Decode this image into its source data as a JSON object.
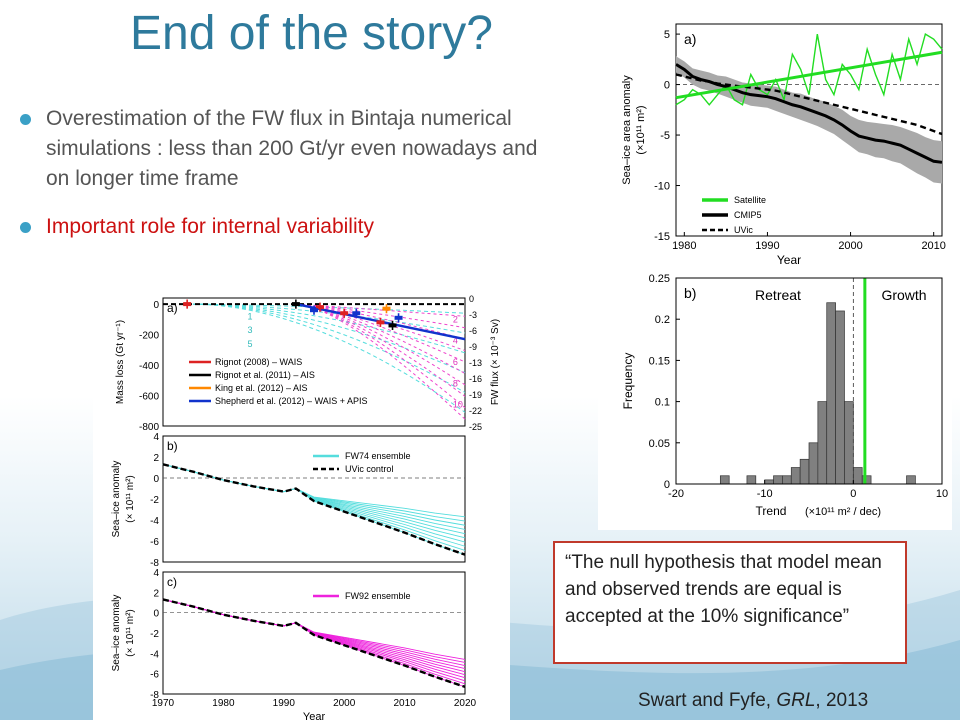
{
  "slide": {
    "title": "End of the story?",
    "bullets": [
      {
        "text": "Overestimation of the FW flux in Bintaja numerical simulations : less than 200 Gt/yr even nowadays and on longer time frame"
      },
      {
        "text": "Important role for internal variability"
      }
    ],
    "quote": "“The null hypothesis that model mean and observed trends are equal is accepted at the 10% significance”",
    "citation_prefix": "Swart and Fyfe, ",
    "citation_journal": "GRL",
    "citation_suffix": ", 2013",
    "colors": {
      "title": "#2e7a9c",
      "bullet": "#3aa0c6",
      "highlight": "#cc1111",
      "quote_border": "#c0392b"
    }
  },
  "chart_data": [
    {
      "id": "right-a",
      "type": "line",
      "panel_label": "a)",
      "xlabel": "Year",
      "ylabel": "Sea–ice area anomaly",
      "ylabel_unit": "(×10¹¹ m²)",
      "xlim": [
        1979,
        2011
      ],
      "ylim": [
        -15,
        6
      ],
      "xticks": [
        1980,
        1990,
        2000,
        2010
      ],
      "yticks": [
        5,
        0,
        -5,
        -10,
        -15
      ],
      "legend": [
        "Satellite",
        "CMIP5",
        "UVic"
      ],
      "x": [
        1979,
        1980,
        1981,
        1982,
        1983,
        1984,
        1985,
        1986,
        1987,
        1988,
        1989,
        1990,
        1991,
        1992,
        1993,
        1994,
        1995,
        1996,
        1997,
        1998,
        1999,
        2000,
        2001,
        2002,
        2003,
        2004,
        2005,
        2006,
        2007,
        2008,
        2009,
        2010,
        2011
      ],
      "series": [
        {
          "name": "Satellite",
          "color": "#22dd22",
          "values": [
            -2,
            -1.5,
            -0.5,
            -1,
            -2,
            -1,
            0,
            -1.5,
            -2,
            1,
            -0.5,
            -1,
            0.5,
            -1.5,
            3,
            1.5,
            -1,
            5,
            0.5,
            -1,
            2,
            1,
            -0.5,
            3.5,
            1,
            -1,
            3,
            0.5,
            4.5,
            2,
            5,
            4.5,
            3.5
          ]
        },
        {
          "name": "Satellite trend",
          "color": "#22dd22",
          "values_fit": [
            -1.3,
            3.2
          ]
        },
        {
          "name": "CMIP5",
          "color": "#000000",
          "values": [
            2,
            1.5,
            0.8,
            0.5,
            0.3,
            0,
            -0.2,
            -0.5,
            -0.8,
            -1,
            -1.1,
            -1.2,
            -1.4,
            -1.7,
            -2,
            -2.2,
            -2.5,
            -2.8,
            -3.1,
            -3.5,
            -4,
            -4.6,
            -5.1,
            -5.3,
            -5.5,
            -5.6,
            -5.8,
            -6,
            -6.4,
            -6.8,
            -7.2,
            -7.6,
            -7.7
          ]
        },
        {
          "name": "UVic",
          "color": "#000000",
          "dashed": true,
          "values": [
            1,
            0.8,
            0.6,
            0.4,
            0.3,
            0.1,
            0,
            -0.1,
            -0.2,
            -0.3,
            -0.4,
            -0.5,
            -0.6,
            -0.8,
            -1,
            -1.2,
            -1.4,
            -1.6,
            -1.8,
            -2,
            -2.2,
            -2.4,
            -2.6,
            -2.8,
            -3,
            -3.2,
            -3.4,
            -3.6,
            -3.8,
            -4,
            -4.3,
            -4.6,
            -4.9
          ]
        }
      ],
      "band_halfwidth": [
        0.8,
        0.8,
        0.8,
        0.9,
        0.9,
        0.9,
        1,
        1,
        1,
        1.1,
        1.1,
        1.1,
        1.2,
        1.2,
        1.2,
        1.3,
        1.3,
        1.3,
        1.4,
        1.4,
        1.5,
        1.5,
        1.6,
        1.6,
        1.7,
        1.7,
        1.8,
        1.8,
        1.9,
        2,
        2,
        2.1,
        2.1
      ]
    },
    {
      "id": "right-b",
      "type": "bar",
      "panel_label": "b)",
      "annotations": [
        "Retreat",
        "Growth"
      ],
      "xlabel": "Trend",
      "xlabel_unit": "(×10¹¹ m² / dec)",
      "ylabel": "Frequency",
      "xlim": [
        -20,
        10
      ],
      "ylim": [
        0,
        0.25
      ],
      "xticks": [
        -20,
        -10,
        0,
        10
      ],
      "yticks": [
        0,
        0.05,
        0.1,
        0.15,
        0.2,
        0.25
      ],
      "bins": [
        [
          -15,
          -14,
          0.01
        ],
        [
          -12,
          -11,
          0.01
        ],
        [
          -10,
          -9,
          0.005
        ],
        [
          -9,
          -8,
          0.01
        ],
        [
          -8,
          -7,
          0.01
        ],
        [
          -7,
          -6,
          0.02
        ],
        [
          -6,
          -5,
          0.03
        ],
        [
          -5,
          -4,
          0.05
        ],
        [
          -4,
          -3,
          0.1
        ],
        [
          -3,
          -2,
          0.22
        ],
        [
          -2,
          -1,
          0.21
        ],
        [
          -1,
          0,
          0.1
        ],
        [
          0,
          1,
          0.02
        ],
        [
          1,
          2,
          0.01
        ],
        [
          6,
          7,
          0.01
        ]
      ],
      "satellite_trend": 1.3,
      "zero_line": true
    },
    {
      "id": "left-a",
      "type": "line",
      "panel_label": "a)",
      "ylabel": "Mass loss (Gt yr⁻¹)",
      "ylabel_right": "FW flux (× 10⁻³ Sv)",
      "xlim": [
        1970,
        2020
      ],
      "ylim": [
        -800,
        40
      ],
      "yticks": [
        0,
        -200,
        -400,
        -600,
        -800
      ],
      "yticks_right": [
        0,
        -3,
        -6,
        -9,
        -13,
        -16,
        -19,
        -22,
        -25
      ],
      "fan_labels_cyan": [
        "1",
        "3",
        "5"
      ],
      "fan_labels_magenta": [
        "2",
        "4",
        "6",
        "8",
        "10"
      ],
      "legend": [
        "Rignot (2008) – WAIS",
        "Rignot et al. (2011) – AIS",
        "King et al. (2012) – AIS",
        "Shepherd et al. (2012) – WAIS + APIS"
      ],
      "trend": {
        "x": [
          1992,
          2020
        ],
        "y": [
          0,
          -230
        ]
      },
      "obs": [
        {
          "name": "Rignot (2008) – WAIS",
          "color": "#dd2222",
          "x": [
            1974,
            1996,
            2000,
            2006
          ],
          "y": [
            0,
            -20,
            -60,
            -120
          ]
        },
        {
          "name": "Rignot et al. (2011) – AIS",
          "color": "#000000",
          "x": [
            1992,
            2008
          ],
          "y": [
            0,
            -140
          ]
        },
        {
          "name": "King et al. (2012) – AIS",
          "color": "#ff8800",
          "x": [
            2007
          ],
          "y": [
            -30
          ]
        },
        {
          "name": "Shepherd et al. (2012) – WAIS + APIS",
          "color": "#1133cc",
          "x": [
            1995,
            2002,
            2009
          ],
          "y": [
            -40,
            -60,
            -90
          ]
        }
      ]
    },
    {
      "id": "left-b",
      "type": "line",
      "panel_label": "b)",
      "ylabel": "Sea–ice anomaly",
      "ylabel_unit": "(× 10¹¹ m²)",
      "xlim": [
        1970,
        2020
      ],
      "ylim": [
        -8,
        4
      ],
      "yticks": [
        4,
        2,
        0,
        -2,
        -4,
        -6,
        -8
      ],
      "legend": [
        "FW74 ensemble",
        "UVic control"
      ],
      "x": [
        1970,
        1975,
        1980,
        1985,
        1990,
        1992,
        1995,
        2000,
        2005,
        2010,
        2015,
        2020
      ],
      "control": [
        1.3,
        0.6,
        -0.2,
        -0.8,
        -1.3,
        -1.0,
        -2.2,
        -3.2,
        -4.2,
        -5.2,
        -6.3,
        -7.3
      ],
      "ensemble_offsets": [
        0,
        0.4,
        0.8,
        1.2,
        1.6,
        2.0,
        2.4,
        2.8,
        3.2,
        3.6
      ]
    },
    {
      "id": "left-c",
      "type": "line",
      "panel_label": "c)",
      "ylabel": "Sea–ice anomaly",
      "ylabel_unit": "(× 10¹¹ m²)",
      "xlabel": "Year",
      "xlim": [
        1970,
        2020
      ],
      "ylim": [
        -8,
        4
      ],
      "xticks": [
        1970,
        1980,
        1990,
        2000,
        2010,
        2020
      ],
      "yticks": [
        4,
        2,
        0,
        -2,
        -4,
        -6,
        -8
      ],
      "legend": [
        "FW92 ensemble"
      ],
      "x": [
        1970,
        1975,
        1980,
        1985,
        1990,
        1992,
        1995,
        2000,
        2005,
        2010,
        2015,
        2020
      ],
      "control": [
        1.3,
        0.6,
        -0.2,
        -0.8,
        -1.3,
        -1.0,
        -2.2,
        -3.2,
        -4.2,
        -5.2,
        -6.3,
        -7.3
      ],
      "ensemble_offsets": [
        0,
        0.3,
        0.6,
        0.9,
        1.2,
        1.5,
        1.8,
        2.1,
        2.4,
        2.7
      ]
    }
  ]
}
